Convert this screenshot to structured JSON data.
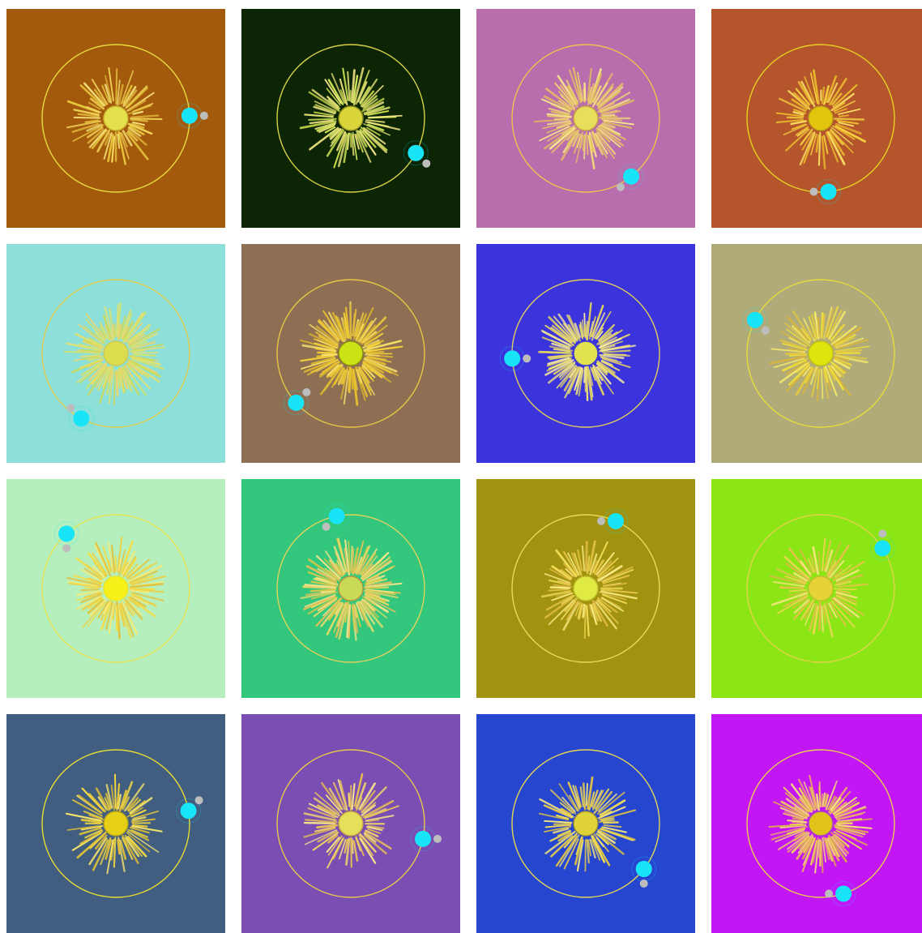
{
  "tiles": [
    {
      "bg": "#A45A0C",
      "sun": "#E4E04C",
      "sun_ring": "#C9B22E",
      "orbit": "#E6DC3A",
      "rays": [
        "#F3D65A",
        "#E8C83C",
        "#F5E27A",
        "#E0B73A"
      ],
      "ray_count": 60,
      "planet_angle_deg": -2,
      "moon_side": "right"
    },
    {
      "bg": "#0B2505",
      "sun": "#DAD53A",
      "sun_ring": "#8B8A1E",
      "orbit": "#D9D247",
      "rays": [
        "#D8EE5A",
        "#E8E27A",
        "#C9D94A",
        "#F2E487"
      ],
      "ray_count": 72,
      "planet_angle_deg": 28,
      "moon_side": "down-right"
    },
    {
      "bg": "#B86EAD",
      "sun": "#E7DF5C",
      "sun_ring": "#C9A542",
      "orbit": "#E9C54D",
      "rays": [
        "#F0D877",
        "#E8B96A",
        "#F6E58E",
        "#E2C15C"
      ],
      "ray_count": 88,
      "planet_angle_deg": 52,
      "moon_side": "down-left"
    },
    {
      "bg": "#B4552C",
      "sun": "#E3C50F",
      "sun_ring": "#B89A18",
      "orbit": "#E6D021",
      "rays": [
        "#F4D03F",
        "#EFC12A",
        "#FAE063",
        "#E8B52C"
      ],
      "ray_count": 56,
      "planet_angle_deg": 84,
      "moon_side": "left"
    },
    {
      "bg": "#8CE0D9",
      "sun": "#DCDC4E",
      "sun_ring": "#CCCC55",
      "orbit": "#E2C94B",
      "rays": [
        "#E9E16A",
        "#D6E36A",
        "#F0D46F",
        "#CFDA57"
      ],
      "ray_count": 90,
      "planet_angle_deg": 118,
      "moon_side": "up-left"
    },
    {
      "bg": "#8F6F53",
      "sun": "#CAE314",
      "sun_ring": "#8E8C14",
      "orbit": "#E4C745",
      "rays": [
        "#F3D23A",
        "#E9C02E",
        "#F6E06A",
        "#D8B52F"
      ],
      "ray_count": 110,
      "planet_angle_deg": 138,
      "moon_side": "up-right"
    },
    {
      "bg": "#3B34DC",
      "sun": "#E2E150",
      "sun_ring": "#4743C8",
      "orbit": "#E1CF5A",
      "rays": [
        "#F0E37C",
        "#E6D462",
        "#F7EBA2",
        "#DCD060"
      ],
      "ray_count": 100,
      "planet_angle_deg": 176,
      "moon_side": "right"
    },
    {
      "bg": "#B0AB79",
      "sun": "#DDE40E",
      "sun_ring": "#C4C20F",
      "orbit": "#E6DD3C",
      "rays": [
        "#F0E03C",
        "#E4C93F",
        "#F4E86A",
        "#DAB53B"
      ],
      "ray_count": 74,
      "planet_angle_deg": -153,
      "moon_side": "down-right"
    },
    {
      "bg": "#B4EFBD",
      "sun": "#F7F11A",
      "sun_ring": "#E8E52E",
      "orbit": "#E9E252",
      "rays": [
        "#F1DE49",
        "#EFCF43",
        "#F8EB74",
        "#E3C33E"
      ],
      "ray_count": 80,
      "planet_angle_deg": -132,
      "moon_side": "down"
    },
    {
      "bg": "#33C77E",
      "sun": "#C8DA56",
      "sun_ring": "#B89A3F",
      "orbit": "#E1D35A",
      "rays": [
        "#E9DD6A",
        "#E4BF5B",
        "#F3E58A",
        "#D4C84B"
      ],
      "ray_count": 112,
      "planet_angle_deg": -101,
      "moon_side": "down-left"
    },
    {
      "bg": "#A1920F",
      "sun": "#DFEB43",
      "sun_ring": "#C0BE2D",
      "orbit": "#E6DC58",
      "rays": [
        "#F1DB56",
        "#E8C74A",
        "#F8EA82",
        "#DDB844"
      ],
      "ray_count": 68,
      "planet_angle_deg": -66,
      "moon_side": "left"
    },
    {
      "bg": "#8CE514",
      "sun": "#E6D337",
      "sun_ring": "#C3C12D",
      "orbit": "#E5D24A",
      "rays": [
        "#F2D756",
        "#EBC14E",
        "#F8E683",
        "#E0BA49"
      ],
      "ray_count": 58,
      "planet_angle_deg": -33,
      "moon_side": "up"
    },
    {
      "bg": "#415D80",
      "sun": "#E5CF17",
      "sun_ring": "#B6A31E",
      "orbit": "#E8DD33",
      "rays": [
        "#F4DA45",
        "#EBCB37",
        "#F8E66C",
        "#E1BD35"
      ],
      "ray_count": 64,
      "planet_angle_deg": -10,
      "moon_side": "up-right"
    },
    {
      "bg": "#7A4EB2",
      "sun": "#E4E05A",
      "sun_ring": "#C9A542",
      "orbit": "#E9C84C",
      "rays": [
        "#F2D76A",
        "#EBC359",
        "#F7E58C",
        "#E3BC55"
      ],
      "ray_count": 60,
      "planet_angle_deg": 12,
      "moon_side": "right"
    },
    {
      "bg": "#2646D0",
      "sun": "#E1D23A",
      "sun_ring": "#9F9336",
      "orbit": "#E4D655",
      "rays": [
        "#F1DD55",
        "#E9CC4D",
        "#F7E87C",
        "#DDC045"
      ],
      "ray_count": 66,
      "planet_angle_deg": 38,
      "moon_side": "down"
    },
    {
      "bg": "#C316F7",
      "sun": "#E2C319",
      "sun_ring": "#A44FB8",
      "orbit": "#E6CF50",
      "rays": [
        "#F0D35A",
        "#EAA86A",
        "#F6E07E",
        "#DCA84F"
      ],
      "ray_count": 96,
      "planet_angle_deg": 72,
      "moon_side": "left"
    }
  ],
  "planet_color": "#17E4F7",
  "moon_color": "#BDBDBD"
}
